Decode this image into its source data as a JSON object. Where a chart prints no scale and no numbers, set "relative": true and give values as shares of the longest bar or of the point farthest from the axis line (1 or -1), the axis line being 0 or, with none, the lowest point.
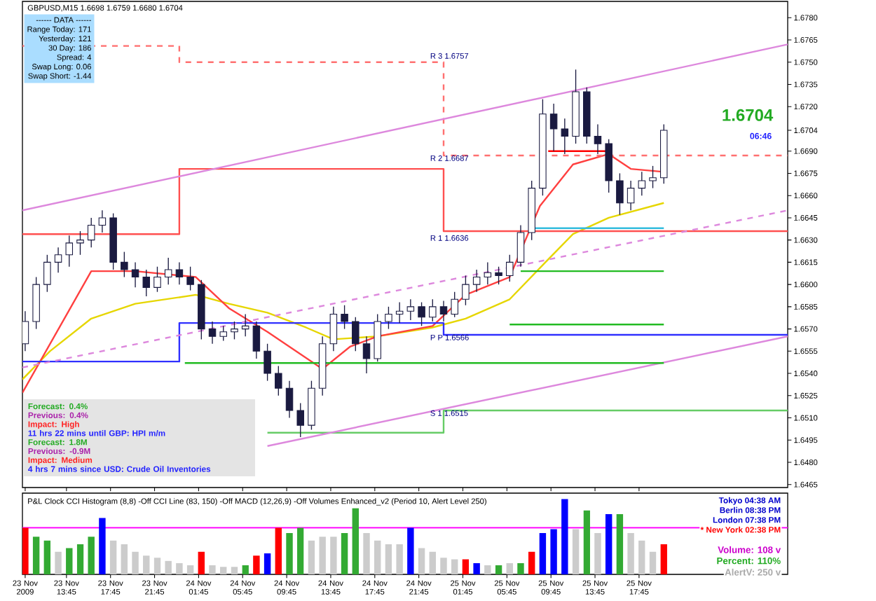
{
  "chart_data": [
    {
      "type": "candlestick",
      "title": "GBPUSD,M15  1.6698 1.6759 1.6680 1.6704",
      "x": [
        "2009-11-23T10:00",
        "2009-11-23T11:00",
        "2009-11-23T12:00",
        "2009-11-23T13:00",
        "2009-11-23T14:00",
        "2009-11-23T15:00",
        "2009-11-23T16:00",
        "2009-11-23T17:00",
        "2009-11-23T18:00",
        "2009-11-23T19:00",
        "2009-11-23T20:00",
        "2009-11-23T21:00",
        "2009-11-23T22:00",
        "2009-11-23T23:00",
        "2009-11-24T00:00",
        "2009-11-24T01:00",
        "2009-11-24T02:00",
        "2009-11-24T03:00",
        "2009-11-24T04:00",
        "2009-11-24T05:00",
        "2009-11-24T06:00",
        "2009-11-24T07:00",
        "2009-11-24T08:00",
        "2009-11-24T09:00",
        "2009-11-24T10:00",
        "2009-11-24T11:00",
        "2009-11-24T12:00",
        "2009-11-24T13:00",
        "2009-11-24T14:00",
        "2009-11-24T15:00",
        "2009-11-24T16:00",
        "2009-11-24T17:00",
        "2009-11-24T18:00",
        "2009-11-24T19:00",
        "2009-11-24T20:00",
        "2009-11-24T21:00",
        "2009-11-24T22:00",
        "2009-11-24T23:00",
        "2009-11-25T00:00",
        "2009-11-25T01:00",
        "2009-11-25T02:00",
        "2009-11-25T03:00",
        "2009-11-25T04:00",
        "2009-11-25T05:00",
        "2009-11-25T06:00",
        "2009-11-25T07:00",
        "2009-11-25T08:00",
        "2009-11-25T09:00",
        "2009-11-25T10:00",
        "2009-11-25T11:00",
        "2009-11-25T12:00",
        "2009-11-25T13:00",
        "2009-11-25T14:00",
        "2009-11-25T15:00",
        "2009-11-25T16:00",
        "2009-11-25T17:00",
        "2009-11-25T18:00",
        "2009-11-25T19:00",
        "2009-11-25T20:00"
      ],
      "ohlc": [
        [
          1.656,
          1.6582,
          1.6555,
          1.6575
        ],
        [
          1.6575,
          1.6605,
          1.657,
          1.66
        ],
        [
          1.66,
          1.662,
          1.6595,
          1.6615
        ],
        [
          1.6615,
          1.6625,
          1.6608,
          1.662
        ],
        [
          1.662,
          1.6633,
          1.6612,
          1.6628
        ],
        [
          1.6628,
          1.6636,
          1.662,
          1.663
        ],
        [
          1.663,
          1.6645,
          1.6625,
          1.664
        ],
        [
          1.664,
          1.665,
          1.6635,
          1.6645
        ],
        [
          1.6645,
          1.6648,
          1.661,
          1.6615
        ],
        [
          1.6615,
          1.6622,
          1.6605,
          1.661
        ],
        [
          1.661,
          1.6615,
          1.6598,
          1.6605
        ],
        [
          1.6605,
          1.661,
          1.6592,
          1.6598
        ],
        [
          1.6598,
          1.6612,
          1.6595,
          1.6605
        ],
        [
          1.6605,
          1.6618,
          1.66,
          1.661
        ],
        [
          1.661,
          1.6615,
          1.66,
          1.6605
        ],
        [
          1.6605,
          1.6612,
          1.6596,
          1.66
        ],
        [
          1.66,
          1.6603,
          1.6563,
          1.657
        ],
        [
          1.657,
          1.6575,
          1.656,
          1.6565
        ],
        [
          1.6565,
          1.6572,
          1.6562,
          1.6568
        ],
        [
          1.6568,
          1.6575,
          1.6563,
          1.657
        ],
        [
          1.657,
          1.658,
          1.6565,
          1.6572
        ],
        [
          1.6572,
          1.6575,
          1.655,
          1.6555
        ],
        [
          1.6555,
          1.656,
          1.6535,
          1.654
        ],
        [
          1.654,
          1.6545,
          1.6525,
          1.653
        ],
        [
          1.653,
          1.6535,
          1.651,
          1.6515
        ],
        [
          1.6515,
          1.652,
          1.6497,
          1.6505
        ],
        [
          1.6505,
          1.6535,
          1.6502,
          1.653
        ],
        [
          1.653,
          1.6565,
          1.6525,
          1.656
        ],
        [
          1.656,
          1.6585,
          1.6555,
          1.658
        ],
        [
          1.658,
          1.6586,
          1.657,
          1.6575
        ],
        [
          1.6575,
          1.6578,
          1.6555,
          1.656
        ],
        [
          1.656,
          1.6565,
          1.654,
          1.655
        ],
        [
          1.655,
          1.658,
          1.6548,
          1.6575
        ],
        [
          1.6575,
          1.6585,
          1.657,
          1.658
        ],
        [
          1.658,
          1.6588,
          1.6574,
          1.6582
        ],
        [
          1.6582,
          1.659,
          1.6576,
          1.6585
        ],
        [
          1.6585,
          1.6588,
          1.6572,
          1.6578
        ],
        [
          1.6578,
          1.659,
          1.6575,
          1.6585
        ],
        [
          1.6585,
          1.6589,
          1.6575,
          1.658
        ],
        [
          1.658,
          1.6595,
          1.6578,
          1.659
        ],
        [
          1.659,
          1.6606,
          1.6586,
          1.66
        ],
        [
          1.66,
          1.661,
          1.6595,
          1.6605
        ],
        [
          1.6605,
          1.6615,
          1.66,
          1.6608
        ],
        [
          1.6608,
          1.6612,
          1.66,
          1.6606
        ],
        [
          1.6606,
          1.662,
          1.6602,
          1.6615
        ],
        [
          1.6615,
          1.664,
          1.6612,
          1.6635
        ],
        [
          1.6635,
          1.667,
          1.663,
          1.6665
        ],
        [
          1.6665,
          1.6725,
          1.666,
          1.6715
        ],
        [
          1.6715,
          1.6722,
          1.669,
          1.6705
        ],
        [
          1.6705,
          1.6712,
          1.6688,
          1.67
        ],
        [
          1.67,
          1.6745,
          1.6695,
          1.673
        ],
        [
          1.673,
          1.6733,
          1.6695,
          1.67
        ],
        [
          1.67,
          1.6708,
          1.6688,
          1.6695
        ],
        [
          1.6695,
          1.6698,
          1.6662,
          1.667
        ],
        [
          1.667,
          1.6675,
          1.6647,
          1.6655
        ],
        [
          1.6655,
          1.667,
          1.665,
          1.6665
        ],
        [
          1.6665,
          1.6676,
          1.666,
          1.667
        ],
        [
          1.667,
          1.668,
          1.6665,
          1.6672
        ],
        [
          1.6672,
          1.6708,
          1.6668,
          1.6704
        ]
      ],
      "series": [
        {
          "type": "line",
          "color": "#e6d600",
          "x": [
            "2009-11-23T09:45",
            "2009-11-23T12:15",
            "2009-11-23T16:00",
            "2009-11-23T20:00",
            "2009-11-24T01:30",
            "2009-11-24T04:30",
            "2009-11-24T08:00",
            "2009-11-24T11:30",
            "2009-11-24T14:00",
            "2009-11-24T18:00",
            "2009-11-24T23:00",
            "2009-11-25T02:00",
            "2009-11-25T06:00",
            "2009-11-25T09:15",
            "2009-11-25T11:45",
            "2009-11-25T15:00",
            "2009-11-25T20:00"
          ],
          "values": [
            1.6536,
            1.6555,
            1.6577,
            1.6587,
            1.6593,
            1.6587,
            1.6581,
            1.6571,
            1.6563,
            1.6565,
            1.6571,
            1.6577,
            1.659,
            1.6615,
            1.6634,
            1.6645,
            1.6655
          ]
        },
        {
          "type": "line",
          "color": "#ff4040",
          "x": [
            "2009-11-23T09:45",
            "2009-11-23T16:00",
            "2009-11-23T20:00",
            "2009-11-24T01:30",
            "2009-11-24T04:30",
            "2009-11-24T08:00",
            "2009-11-24T13:00",
            "2009-11-24T15:30",
            "2009-11-24T18:00",
            "2009-11-24T23:00",
            "2009-11-25T02:00",
            "2009-11-25T06:00",
            "2009-11-25T08:45",
            "2009-11-25T11:45",
            "2009-11-25T15:00",
            "2009-11-25T17:00",
            "2009-11-25T20:00"
          ],
          "values": [
            1.6527,
            1.6609,
            1.6609,
            1.6605,
            1.6584,
            1.6568,
            1.6543,
            1.6558,
            1.6565,
            1.6572,
            1.6593,
            1.6605,
            1.6653,
            1.6681,
            1.6688,
            1.6678,
            1.6676
          ]
        },
        {
          "type": "step",
          "color": "#ff7070",
          "line_style": "dashed",
          "x": [
            "2009-11-23T09:45",
            "2009-11-24T00:00",
            "2009-11-25T00:00",
            "2009-11-26T07:15"
          ],
          "values": [
            1.6761,
            1.675,
            1.6687,
            1.6687
          ]
        },
        {
          "type": "step",
          "color": "#ff5050",
          "x": [
            "2009-11-23T09:45",
            "2009-11-24T00:00",
            "2009-11-25T00:00",
            "2009-11-26T07:15"
          ],
          "values": [
            1.6634,
            1.6678,
            1.6636,
            1.6636
          ]
        },
        {
          "type": "step",
          "color": "#3030ff",
          "x": [
            "2009-11-23T09:45",
            "2009-11-24T00:00",
            "2009-11-25T00:00",
            "2009-11-26T07:15"
          ],
          "values": [
            1.6548,
            1.6574,
            1.6566,
            1.6566
          ]
        },
        {
          "type": "step",
          "color": "#66cc66",
          "x": [
            "2009-11-24T08:00",
            "2009-11-25T00:00",
            "2009-11-26T07:15"
          ],
          "values": [
            1.65,
            1.6515,
            1.6515
          ]
        },
        {
          "type": "line",
          "color": "#dd88dd",
          "x": [
            "2009-11-23T09:45",
            "2009-11-26T07:15"
          ],
          "values": [
            1.665,
            1.6762
          ]
        },
        {
          "type": "line",
          "color": "#dd88dd",
          "line_style": "dashed",
          "x": [
            "2009-11-23T09:45",
            "2009-11-26T07:15"
          ],
          "values": [
            1.6544,
            1.665
          ]
        },
        {
          "type": "line",
          "color": "#dd88dd",
          "x": [
            "2009-11-24T08:00",
            "2009-11-26T07:15"
          ],
          "values": [
            1.6491,
            1.6565
          ]
        },
        {
          "type": "line",
          "color": "#ff0000",
          "x": [
            "2009-11-25T09:30",
            "2009-11-25T15:00"
          ],
          "values": [
            1.669,
            1.669
          ]
        },
        {
          "type": "line",
          "color": "#33bbdd",
          "x": [
            "2009-11-25T08:00",
            "2009-11-25T20:00"
          ],
          "values": [
            1.6638,
            1.6638
          ]
        },
        {
          "type": "line",
          "color": "#22bb22",
          "x": [
            "2009-11-25T07:00",
            "2009-11-25T20:00"
          ],
          "values": [
            1.6609,
            1.6609
          ]
        },
        {
          "type": "line",
          "color": "#22bb22",
          "x": [
            "2009-11-25T06:00",
            "2009-11-25T20:00"
          ],
          "values": [
            1.6573,
            1.6573
          ]
        },
        {
          "type": "line",
          "color": "#22bb22",
          "x": [
            "2009-11-24T00:30",
            "2009-11-25T20:00"
          ],
          "values": [
            1.6547,
            1.6547
          ]
        }
      ],
      "xlim": [
        "2009-11-23T09:45",
        "2009-11-26T07:15"
      ],
      "xticks": [
        {
          "value": "2009-11-23T10:00",
          "label": null
        },
        {
          "value": "2009-11-23T13:45",
          "label": null
        },
        {
          "value": "2009-11-23T17:45",
          "label": null
        },
        {
          "value": "2009-11-23T21:45",
          "label": null
        },
        {
          "value": "2009-11-24T01:45",
          "label": null
        },
        {
          "value": "2009-11-24T05:45",
          "label": null
        },
        {
          "value": "2009-11-24T09:45",
          "label": null
        },
        {
          "value": "2009-11-24T13:45",
          "label": null
        },
        {
          "value": "2009-11-24T17:45",
          "label": null
        },
        {
          "value": "2009-11-24T21:45",
          "label": null
        },
        {
          "value": "2009-11-25T01:45",
          "label": null
        },
        {
          "value": "2009-11-25T05:45",
          "label": null
        },
        {
          "value": "2009-11-25T09:45",
          "label": null
        },
        {
          "value": "2009-11-25T13:45",
          "label": null
        },
        {
          "value": "2009-11-25T17:45",
          "label": null
        }
      ],
      "ylim": [
        1.6463,
        1.6791
      ],
      "yticks": [
        {
          "value": 1.678,
          "label": "1.6780"
        },
        1.6765,
        {
          "value": 1.675,
          "label": "1.6750"
        },
        1.6735,
        {
          "value": 1.672,
          "label": "1.6720"
        },
        1.6704,
        {
          "value": 1.669,
          "label": "1.6690"
        },
        1.6675,
        {
          "value": 1.666,
          "label": "1.6660"
        },
        1.6645,
        {
          "value": 1.663,
          "label": "1.6630"
        },
        1.6615,
        {
          "value": 1.66,
          "label": "1.6600"
        },
        1.6585,
        {
          "value": 1.657,
          "label": "1.6570"
        },
        1.6555,
        {
          "value": 1.654,
          "label": "1.6540"
        },
        1.6525,
        {
          "value": 1.651,
          "label": "1.6510"
        },
        1.6495,
        {
          "value": 1.648,
          "label": "1.6480"
        },
        1.6465
      ],
      "tick_labels": "y",
      "annotations": [
        "------ DATA ------",
        "Range Today:  171",
        "Yesterday:  121",
        "30 Day:  186",
        "Spread:  4",
        "Swap Long:  0.06",
        "Swap Short:  -1.44",
        "Forecast: 0.4%",
        "Previous: 0.4%",
        "Impact: High",
        "11 hrs 22 mins until GBP: HPI m/m",
        "Forecast: 1.8M",
        "Previous: -0.9M",
        "Impact: Medium",
        "4 hrs 7 mins since USD: Crude Oil Inventories",
        "R 3   1.6757",
        "R 2   1.6687",
        "R 1   1.6636",
        "P P   1.6566",
        "S 1   1.6515",
        "1.6704",
        "06:46"
      ]
    },
    {
      "type": "bar",
      "relative": true,
      "x": [
        "2009-11-23T10:00",
        "2009-11-23T11:00",
        "2009-11-23T12:00",
        "2009-11-23T13:00",
        "2009-11-23T14:00",
        "2009-11-23T15:00",
        "2009-11-23T16:00",
        "2009-11-23T17:00",
        "2009-11-23T18:00",
        "2009-11-23T19:00",
        "2009-11-23T20:00",
        "2009-11-23T21:00",
        "2009-11-23T22:00",
        "2009-11-23T23:00",
        "2009-11-24T00:00",
        "2009-11-24T01:00",
        "2009-11-24T02:00",
        "2009-11-24T03:00",
        "2009-11-24T04:00",
        "2009-11-24T05:00",
        "2009-11-24T06:00",
        "2009-11-24T07:00",
        "2009-11-24T08:00",
        "2009-11-24T09:00",
        "2009-11-24T10:00",
        "2009-11-24T11:00",
        "2009-11-24T12:00",
        "2009-11-24T13:00",
        "2009-11-24T14:00",
        "2009-11-24T15:00",
        "2009-11-24T16:00",
        "2009-11-24T17:00",
        "2009-11-24T18:00",
        "2009-11-24T19:00",
        "2009-11-24T20:00",
        "2009-11-24T21:00",
        "2009-11-24T22:00",
        "2009-11-24T23:00",
        "2009-11-25T00:00",
        "2009-11-25T01:00",
        "2009-11-25T02:00",
        "2009-11-25T03:00",
        "2009-11-25T04:00",
        "2009-11-25T05:00",
        "2009-11-25T06:00",
        "2009-11-25T07:00",
        "2009-11-25T08:00",
        "2009-11-25T09:00",
        "2009-11-25T10:00",
        "2009-11-25T11:00",
        "2009-11-25T12:00",
        "2009-11-25T13:00",
        "2009-11-25T14:00",
        "2009-11-25T15:00",
        "2009-11-25T16:00",
        "2009-11-25T17:00",
        "2009-11-25T18:00",
        "2009-11-25T19:00",
        "2009-11-25T20:00"
      ],
      "values": [
        0.62,
        0.5,
        0.45,
        0.3,
        0.35,
        0.4,
        0.5,
        0.75,
        0.45,
        0.4,
        0.3,
        0.25,
        0.22,
        0.18,
        0.15,
        0.12,
        0.3,
        0.12,
        0.1,
        0.1,
        0.12,
        0.25,
        0.28,
        0.62,
        0.55,
        0.62,
        0.45,
        0.5,
        0.5,
        0.55,
        0.88,
        0.55,
        0.45,
        0.4,
        0.4,
        0.62,
        0.35,
        0.3,
        0.22,
        0.2,
        0.2,
        0.15,
        0.12,
        0.12,
        0.15,
        0.15,
        0.3,
        0.55,
        0.6,
        1.0,
        0.6,
        0.85,
        0.55,
        0.8,
        0.8,
        0.55,
        0.45,
        0.3,
        0.4
      ],
      "colors": [
        "#ff0000",
        "#33aa33",
        "#33aa33",
        "#cccccc",
        "#33aa33",
        "#33aa33",
        "#33aa33",
        "#0000ff",
        "#cccccc",
        "#cccccc",
        "#cccccc",
        "#cccccc",
        "#cccccc",
        "#cccccc",
        "#cccccc",
        "#cccccc",
        "#ff0000",
        "#cccccc",
        "#cccccc",
        "#cccccc",
        "#33aa33",
        "#ff0000",
        "#0000ff",
        "#ff0000",
        "#33aa33",
        "#33aa33",
        "#cccccc",
        "#cccccc",
        "#cccccc",
        "#33aa33",
        "#33aa33",
        "#cccccc",
        "#cccccc",
        "#cccccc",
        "#cccccc",
        "#0000ff",
        "#cccccc",
        "#cccccc",
        "#cccccc",
        "#cccccc",
        "#ff0000",
        "#0000ff",
        "#cccccc",
        "#33aa33",
        "#cccccc",
        "#33aa33",
        "#ff0000",
        "#0000ff",
        "#0000ff",
        "#0000ff",
        "#cccccc",
        "#33aa33",
        "#cccccc",
        "#0000ff",
        "#33aa33",
        "#cccccc",
        "#cccccc",
        "#cccccc",
        "#ff0000"
      ],
      "xlim": [
        "2009-11-23T09:45",
        "2009-11-26T07:15"
      ],
      "xticks": [
        {
          "value": "2009-11-23T10:00",
          "label": "23 Nov 2009"
        },
        {
          "value": "2009-11-23T13:45",
          "label": "23 Nov 13:45"
        },
        {
          "value": "2009-11-23T17:45",
          "label": "23 Nov 17:45"
        },
        {
          "value": "2009-11-23T21:45",
          "label": "23 Nov 21:45"
        },
        {
          "value": "2009-11-24T01:45",
          "label": "24 Nov 01:45"
        },
        {
          "value": "2009-11-24T05:45",
          "label": "24 Nov 05:45"
        },
        {
          "value": "2009-11-24T09:45",
          "label": "24 Nov 09:45"
        },
        {
          "value": "2009-11-24T13:45",
          "label": "24 Nov 13:45"
        },
        {
          "value": "2009-11-24T17:45",
          "label": "24 Nov 17:45"
        },
        {
          "value": "2009-11-24T21:45",
          "label": "24 Nov 21:45"
        },
        {
          "value": "2009-11-25T01:45",
          "label": "25 Nov 01:45"
        },
        {
          "value": "2009-11-25T05:45",
          "label": "25 Nov 05:45"
        },
        {
          "value": "2009-11-25T09:45",
          "label": "25 Nov 09:45"
        },
        {
          "value": "2009-11-25T13:45",
          "label": "25 Nov 13:45"
        },
        {
          "value": "2009-11-25T17:45",
          "label": "25 Nov 17:45"
        }
      ],
      "tick_labels": "x",
      "ref_lines": [
        {
          "axis": "y",
          "value": 0.62,
          "color": "#ff00ff"
        }
      ],
      "annotations": [
        "P&L Clock    CCI Histogram (8,8) -Off    CCI Line (83, 150) -Off    MACD (12,26,9) -Off    Volumes Enhanced_v2 (Period 10, Alert Level 250)",
        "Tokyo  04:38 AM",
        "Berlin  08:38 PM",
        "London  07:38 PM",
        "* New York  02:38 PM",
        "Volume:  108 v",
        "Percent:  110%",
        "AlertV:  250 v"
      ]
    }
  ]
}
